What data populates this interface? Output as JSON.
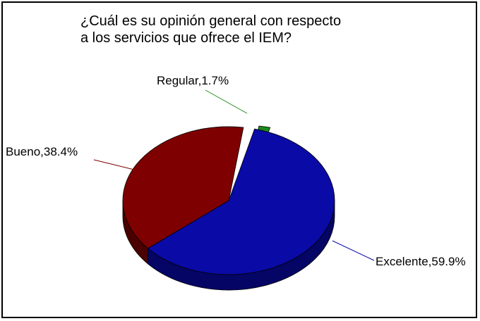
{
  "chart_data": {
    "type": "pie",
    "title": "¿Cuál es su opinión general con respecto\na los servicios que ofrece el IEM?",
    "slices": [
      {
        "label": "Regular",
        "value": 1.7,
        "display": "Regular,1.7%",
        "color": "#1a8a1a",
        "side": "#0e560e"
      },
      {
        "label": "Excelente",
        "value": 59.9,
        "display": "Excelente,59.9%",
        "color": "#0a0aa6",
        "side": "#050566"
      },
      {
        "label": "Bueno",
        "value": 38.4,
        "display": "Bueno,38.4%",
        "color": "#7f0000",
        "side": "#4a0000"
      }
    ],
    "exploded": "Regular",
    "style": "3d"
  }
}
